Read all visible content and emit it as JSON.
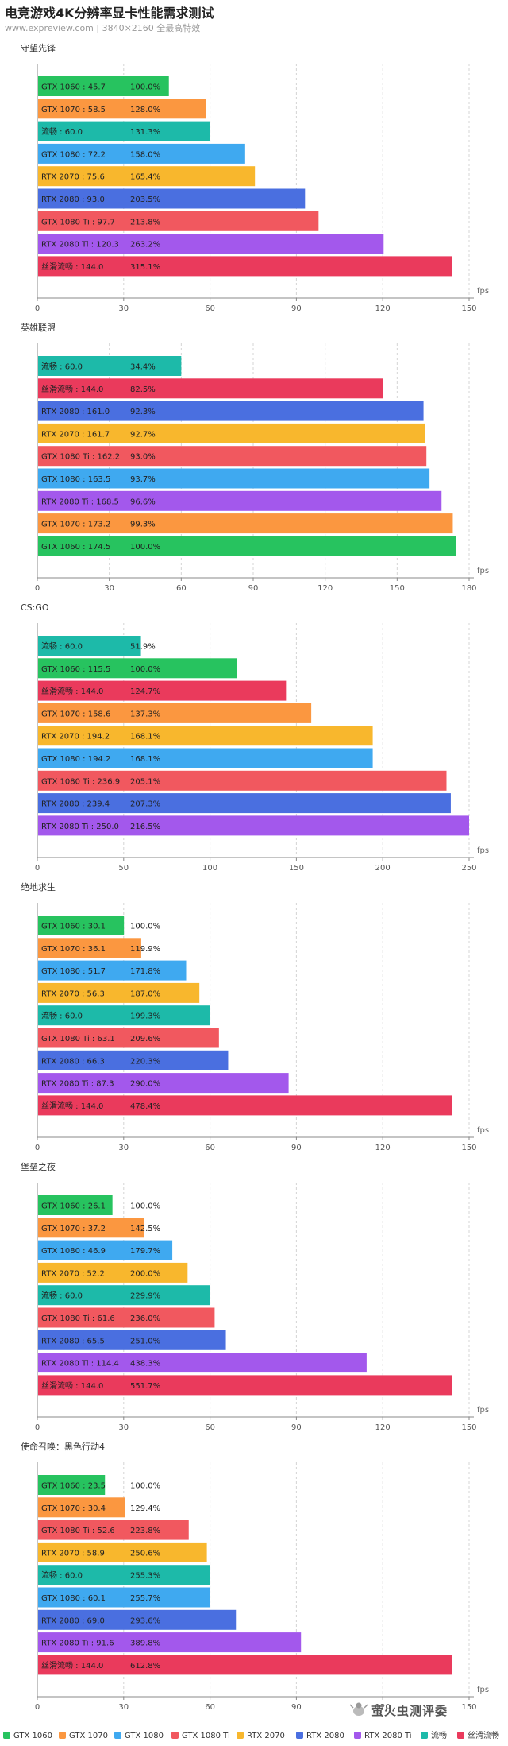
{
  "header": {
    "title": "电竞游戏4K分辨率显卡性能需求测试",
    "subtitle": "www.expreview.com | 3840×2160 全最高特效"
  },
  "colors": {
    "GTX 1060": "#27c35f",
    "GTX 1070": "#fb9740",
    "GTX 1080": "#3fa9f0",
    "GTX 1080 Ti": "#f1585f",
    "RTX 2070": "#f8b72d",
    "RTX 2080": "#4a6fe0",
    "RTX 2080 Ti": "#a358ec",
    "流畅": "#1dbaa9",
    "丝滑流畅": "#ea3a5c"
  },
  "legend": {
    "items": [
      {
        "label": "GTX 1060",
        "series": "GTX 1060"
      },
      {
        "label": "GTX 1070",
        "series": "GTX 1070"
      },
      {
        "label": "GTX 1080",
        "series": "GTX 1080"
      },
      {
        "label": "GTX 1080 Ti",
        "series": "GTX 1080 Ti"
      },
      {
        "label": "RTX 2070",
        "series": "RTX 2070"
      },
      {
        "label": "RTX 2080",
        "series": "RTX 2080"
      },
      {
        "label": "RTX 2080 Ti",
        "series": "RTX 2080 Ti"
      },
      {
        "label": "流畅",
        "series": "流畅"
      },
      {
        "label": "丝滑流畅",
        "series": "丝滑流畅"
      }
    ]
  },
  "watermark": {
    "text": "萤火虫测评委"
  },
  "chart_data": [
    {
      "type": "bar",
      "orientation": "horizontal",
      "title": "守望先锋",
      "xlabel": "fps",
      "xlim": [
        0,
        150
      ],
      "xticks": [
        0,
        30,
        60,
        90,
        120,
        150
      ],
      "bars": [
        {
          "series": "GTX 1060",
          "value": 45.7,
          "label": "GTX 1060 : 45.7",
          "pct": "100.0%"
        },
        {
          "series": "GTX 1070",
          "value": 58.5,
          "label": "GTX 1070 : 58.5",
          "pct": "128.0%"
        },
        {
          "series": "流畅",
          "value": 60.0,
          "label": "流畅 : 60.0",
          "pct": "131.3%"
        },
        {
          "series": "GTX 1080",
          "value": 72.2,
          "label": "GTX 1080 : 72.2",
          "pct": "158.0%"
        },
        {
          "series": "RTX 2070",
          "value": 75.6,
          "label": "RTX 2070 : 75.6",
          "pct": "165.4%"
        },
        {
          "series": "RTX 2080",
          "value": 93.0,
          "label": "RTX 2080 : 93.0",
          "pct": "203.5%"
        },
        {
          "series": "GTX 1080 Ti",
          "value": 97.7,
          "label": "GTX 1080 Ti : 97.7",
          "pct": "213.8%"
        },
        {
          "series": "RTX 2080 Ti",
          "value": 120.3,
          "label": "RTX 2080 Ti : 120.3",
          "pct": "263.2%"
        },
        {
          "series": "丝滑流畅",
          "value": 144.0,
          "label": "丝滑流畅 : 144.0",
          "pct": "315.1%"
        }
      ]
    },
    {
      "type": "bar",
      "orientation": "horizontal",
      "title": "英雄联盟",
      "xlabel": "fps",
      "xlim": [
        0,
        180
      ],
      "xticks": [
        0,
        30,
        60,
        90,
        120,
        150,
        180
      ],
      "bars": [
        {
          "series": "流畅",
          "value": 60.0,
          "label": "流畅 : 60.0",
          "pct": "34.4%"
        },
        {
          "series": "丝滑流畅",
          "value": 144.0,
          "label": "丝滑流畅 : 144.0",
          "pct": "82.5%"
        },
        {
          "series": "RTX 2080",
          "value": 161.0,
          "label": "RTX 2080 : 161.0",
          "pct": "92.3%"
        },
        {
          "series": "RTX 2070",
          "value": 161.7,
          "label": "RTX 2070 : 161.7",
          "pct": "92.7%"
        },
        {
          "series": "GTX 1080 Ti",
          "value": 162.2,
          "label": "GTX 1080 Ti : 162.2",
          "pct": "93.0%"
        },
        {
          "series": "GTX 1080",
          "value": 163.5,
          "label": "GTX 1080 : 163.5",
          "pct": "93.7%"
        },
        {
          "series": "RTX 2080 Ti",
          "value": 168.5,
          "label": "RTX 2080 Ti : 168.5",
          "pct": "96.6%"
        },
        {
          "series": "GTX 1070",
          "value": 173.2,
          "label": "GTX 1070 : 173.2",
          "pct": "99.3%"
        },
        {
          "series": "GTX 1060",
          "value": 174.5,
          "label": "GTX 1060 : 174.5",
          "pct": "100.0%"
        }
      ]
    },
    {
      "type": "bar",
      "orientation": "horizontal",
      "title": "CS:GO",
      "xlabel": "fps",
      "xlim": [
        0,
        250
      ],
      "xticks": [
        0,
        50,
        100,
        150,
        200,
        250
      ],
      "bars": [
        {
          "series": "流畅",
          "value": 60.0,
          "label": "流畅 : 60.0",
          "pct": "51.9%"
        },
        {
          "series": "GTX 1060",
          "value": 115.5,
          "label": "GTX 1060 : 115.5",
          "pct": "100.0%"
        },
        {
          "series": "丝滑流畅",
          "value": 144.0,
          "label": "丝滑流畅 : 144.0",
          "pct": "124.7%"
        },
        {
          "series": "GTX 1070",
          "value": 158.6,
          "label": "GTX 1070 : 158.6",
          "pct": "137.3%"
        },
        {
          "series": "RTX 2070",
          "value": 194.2,
          "label": "RTX 2070 : 194.2",
          "pct": "168.1%"
        },
        {
          "series": "GTX 1080",
          "value": 194.2,
          "label": "GTX 1080 : 194.2",
          "pct": "168.1%"
        },
        {
          "series": "GTX 1080 Ti",
          "value": 236.9,
          "label": "GTX 1080 Ti : 236.9",
          "pct": "205.1%"
        },
        {
          "series": "RTX 2080",
          "value": 239.4,
          "label": "RTX 2080 : 239.4",
          "pct": "207.3%"
        },
        {
          "series": "RTX 2080 Ti",
          "value": 250.0,
          "label": "RTX 2080 Ti : 250.0",
          "pct": "216.5%"
        }
      ]
    },
    {
      "type": "bar",
      "orientation": "horizontal",
      "title": "绝地求生",
      "xlabel": "fps",
      "xlim": [
        0,
        150
      ],
      "xticks": [
        0,
        30,
        60,
        90,
        120,
        150
      ],
      "bars": [
        {
          "series": "GTX 1060",
          "value": 30.1,
          "label": "GTX 1060 : 30.1",
          "pct": "100.0%"
        },
        {
          "series": "GTX 1070",
          "value": 36.1,
          "label": "GTX 1070 : 36.1",
          "pct": "119.9%"
        },
        {
          "series": "GTX 1080",
          "value": 51.7,
          "label": "GTX 1080 : 51.7",
          "pct": "171.8%"
        },
        {
          "series": "RTX 2070",
          "value": 56.3,
          "label": "RTX 2070 : 56.3",
          "pct": "187.0%"
        },
        {
          "series": "流畅",
          "value": 60.0,
          "label": "流畅 : 60.0",
          "pct": "199.3%"
        },
        {
          "series": "GTX 1080 Ti",
          "value": 63.1,
          "label": "GTX 1080 Ti : 63.1",
          "pct": "209.6%"
        },
        {
          "series": "RTX 2080",
          "value": 66.3,
          "label": "RTX 2080 : 66.3",
          "pct": "220.3%"
        },
        {
          "series": "RTX 2080 Ti",
          "value": 87.3,
          "label": "RTX 2080 Ti : 87.3",
          "pct": "290.0%"
        },
        {
          "series": "丝滑流畅",
          "value": 144.0,
          "label": "丝滑流畅 : 144.0",
          "pct": "478.4%"
        }
      ]
    },
    {
      "type": "bar",
      "orientation": "horizontal",
      "title": "堡垒之夜",
      "xlabel": "fps",
      "xlim": [
        0,
        150
      ],
      "xticks": [
        0,
        30,
        60,
        90,
        120,
        150
      ],
      "bars": [
        {
          "series": "GTX 1060",
          "value": 26.1,
          "label": "GTX 1060 : 26.1",
          "pct": "100.0%"
        },
        {
          "series": "GTX 1070",
          "value": 37.2,
          "label": "GTX 1070 : 37.2",
          "pct": "142.5%"
        },
        {
          "series": "GTX 1080",
          "value": 46.9,
          "label": "GTX 1080 : 46.9",
          "pct": "179.7%"
        },
        {
          "series": "RTX 2070",
          "value": 52.2,
          "label": "RTX 2070 : 52.2",
          "pct": "200.0%"
        },
        {
          "series": "流畅",
          "value": 60.0,
          "label": "流畅 : 60.0",
          "pct": "229.9%"
        },
        {
          "series": "GTX 1080 Ti",
          "value": 61.6,
          "label": "GTX 1080 Ti : 61.6",
          "pct": "236.0%"
        },
        {
          "series": "RTX 2080",
          "value": 65.5,
          "label": "RTX 2080 : 65.5",
          "pct": "251.0%"
        },
        {
          "series": "RTX 2080 Ti",
          "value": 114.4,
          "label": "RTX 2080 Ti : 114.4",
          "pct": "438.3%"
        },
        {
          "series": "丝滑流畅",
          "value": 144.0,
          "label": "丝滑流畅 : 144.0",
          "pct": "551.7%"
        }
      ]
    },
    {
      "type": "bar",
      "orientation": "horizontal",
      "title": "使命召唤：黑色行动4",
      "xlabel": "fps",
      "xlim": [
        0,
        150
      ],
      "xticks": [
        0,
        30,
        60,
        90,
        120,
        150
      ],
      "bars": [
        {
          "series": "GTX 1060",
          "value": 23.5,
          "label": "GTX 1060 : 23.5",
          "pct": "100.0%"
        },
        {
          "series": "GTX 1070",
          "value": 30.4,
          "label": "GTX 1070 : 30.4",
          "pct": "129.4%"
        },
        {
          "series": "GTX 1080 Ti",
          "value": 52.6,
          "label": "GTX 1080 Ti : 52.6",
          "pct": "223.8%"
        },
        {
          "series": "RTX 2070",
          "value": 58.9,
          "label": "RTX 2070 : 58.9",
          "pct": "250.6%"
        },
        {
          "series": "流畅",
          "value": 60.0,
          "label": "流畅 : 60.0",
          "pct": "255.3%"
        },
        {
          "series": "GTX 1080",
          "value": 60.1,
          "label": "GTX 1080 : 60.1",
          "pct": "255.7%"
        },
        {
          "series": "RTX 2080",
          "value": 69.0,
          "label": "RTX 2080 : 69.0",
          "pct": "293.6%"
        },
        {
          "series": "RTX 2080 Ti",
          "value": 91.6,
          "label": "RTX 2080 Ti : 91.6",
          "pct": "389.8%"
        },
        {
          "series": "丝滑流畅",
          "value": 144.0,
          "label": "丝滑流畅 : 144.0",
          "pct": "612.8%"
        }
      ]
    }
  ]
}
